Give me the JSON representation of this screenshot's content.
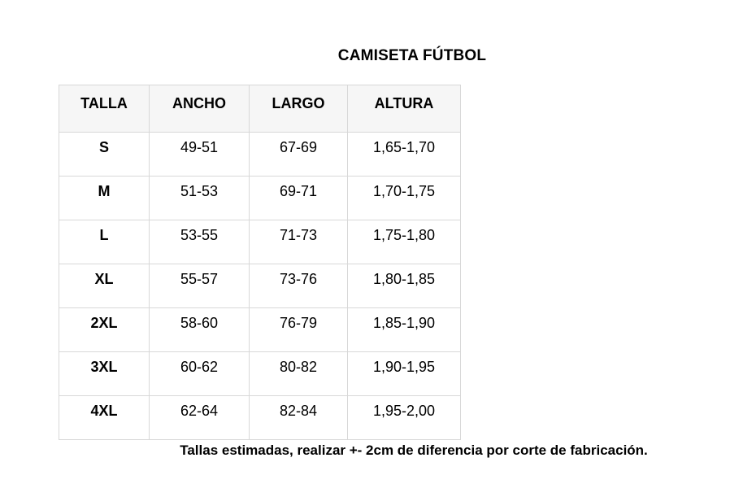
{
  "title": "CAMISETA FÚTBOL",
  "table": {
    "columns": [
      "TALLA",
      "ANCHO",
      "LARGO",
      "ALTURA"
    ],
    "rows": [
      {
        "talla": "S",
        "ancho": "49-51",
        "largo": "67-69",
        "altura": "1,65-1,70"
      },
      {
        "talla": "M",
        "ancho": "51-53",
        "largo": "69-71",
        "altura": "1,70-1,75"
      },
      {
        "talla": "L",
        "ancho": "53-55",
        "largo": "71-73",
        "altura": "1,75-1,80"
      },
      {
        "talla": "XL",
        "ancho": "55-57",
        "largo": "73-76",
        "altura": "1,80-1,85"
      },
      {
        "talla": "2XL",
        "ancho": "58-60",
        "largo": "76-79",
        "altura": "1,85-1,90"
      },
      {
        "talla": "3XL",
        "ancho": "60-62",
        "largo": "80-82",
        "altura": "1,90-1,95"
      },
      {
        "talla": "4XL",
        "ancho": "62-64",
        "largo": "82-84",
        "altura": "1,95-2,00"
      }
    ]
  },
  "footnote": "Tallas estimadas, realizar +- 2cm de diferencia por corte de fabricación.",
  "colors": {
    "page_background": "#ffffff",
    "header_background": "#f6f6f6",
    "table_border": "#d8d8d8",
    "text": "#000000"
  }
}
